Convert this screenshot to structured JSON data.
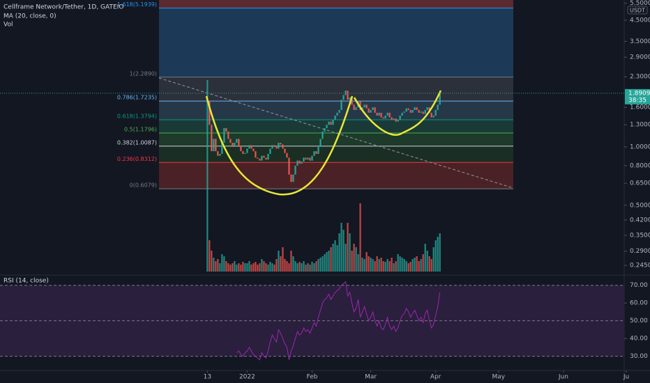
{
  "header": {
    "symbol": "Cellframe Network/Tether, 1D, GATEIO",
    "ma": "MA (20, close, 0)",
    "vol": "Vol",
    "rsi": "RSI (14, close)",
    "currency": "USDT",
    "countdown": "38:35"
  },
  "chart_data": [
    {
      "type": "candlestick",
      "log_scale": true,
      "up_color": "#26a69a",
      "down_color": "#ef5350",
      "xlim": [
        -99,
        199
      ],
      "xticks": [
        {
          "value": 0,
          "label": "13"
        },
        {
          "value": 19,
          "label": "2022"
        },
        {
          "value": 50,
          "label": "Feb"
        },
        {
          "value": 78,
          "label": "Mar"
        },
        {
          "value": 109,
          "label": "Apr"
        },
        {
          "value": 139,
          "label": "May"
        },
        {
          "value": 170,
          "label": "Jun"
        },
        {
          "value": 200,
          "label": "Ju"
        }
      ],
      "ylim": [
        0.222,
        5.72
      ],
      "yticks": [
        {
          "value": 5.5,
          "label": "5.5000"
        },
        {
          "value": 4.5,
          "label": "4.5000"
        },
        {
          "value": 3.5,
          "label": "3.5000"
        },
        {
          "value": 2.9,
          "label": "2.9000"
        },
        {
          "value": 2.3,
          "label": "2.3000"
        },
        {
          "value": 1.6,
          "label": "1.6000"
        },
        {
          "value": 1.3,
          "label": "1.3000"
        },
        {
          "value": 1,
          "label": "1.0000"
        },
        {
          "value": 0.8,
          "label": "0.8000"
        },
        {
          "value": 0.65,
          "label": "0.6500"
        },
        {
          "value": 0.5,
          "label": "0.5000"
        },
        {
          "value": 0.42,
          "label": "0.4200"
        },
        {
          "value": 0.35,
          "label": "0.3500"
        },
        {
          "value": 0.29,
          "label": "0.2900"
        },
        {
          "value": 0.245,
          "label": "0.2450"
        }
      ],
      "last_price": 1.8909,
      "top_fill": "#5a2a30",
      "fib_levels": [
        {
          "value": 5.1939,
          "label": "1.618(5.1939)",
          "color": "#2196f3",
          "fill": "#1c3a57"
        },
        {
          "value": 2.289,
          "label": "1(2.2890)",
          "color": "#787b86",
          "fill": "#2c303a"
        },
        {
          "value": 1.7235,
          "label": "0.786(1.7235)",
          "color": "#64b5f6",
          "fill": "#263848"
        },
        {
          "value": 1.3794,
          "label": "0.618(1.3794)",
          "color": "#089981",
          "fill": "#1a3a38"
        },
        {
          "value": 1.1796,
          "label": "0.5(1.1796)",
          "color": "#4caf50",
          "fill": "#1d3a2a"
        },
        {
          "value": 1.0087,
          "label": "0.382(1.0087)",
          "color": "#d1d4dc",
          "fill": "#1b2e24"
        },
        {
          "value": 0.8312,
          "label": "0.236(0.8312)",
          "color": "#f23645",
          "fill": "#4a2226"
        },
        {
          "value": 0.6079,
          "label": "0(0.6079)",
          "color": "#787b86",
          "fill": "none"
        }
      ],
      "values": [
        1.72,
        1.3,
        0.95,
        1.1,
        0.95,
        0.9,
        0.92,
        1.05,
        1.25,
        1.2,
        1.1,
        1.05,
        1.0,
        1.05,
        1.1,
        1.0,
        0.95,
        0.92,
        0.93,
        0.98,
        1.02,
        0.98,
        0.95,
        0.88,
        0.87,
        0.85,
        0.9,
        0.88,
        0.86,
        0.92,
        0.98,
        1.02,
        1.0,
        0.98,
        1.05,
        1.03,
        0.98,
        0.93,
        0.88,
        0.72,
        0.66,
        0.72,
        0.8,
        0.85,
        0.82,
        0.84,
        0.88,
        0.86,
        0.88,
        0.85,
        0.9,
        0.95,
        0.92,
        1.0,
        1.1,
        1.2,
        1.25,
        1.3,
        1.35,
        1.3,
        1.38,
        1.45,
        1.5,
        1.55,
        1.75,
        1.85,
        1.95,
        1.75,
        1.8,
        1.65,
        1.55,
        1.6,
        1.72,
        1.55,
        1.6,
        1.65,
        1.58,
        1.5,
        1.55,
        1.6,
        1.5,
        1.45,
        1.5,
        1.42,
        1.4,
        1.45,
        1.5,
        1.42,
        1.38,
        1.4,
        1.35,
        1.38,
        1.45,
        1.5,
        1.52,
        1.58,
        1.55,
        1.5,
        1.55,
        1.6,
        1.55,
        1.5,
        1.52,
        1.48,
        1.55,
        1.6,
        1.5,
        1.42,
        1.45,
        1.55,
        1.65,
        1.8909
      ]
    },
    {
      "type": "bar",
      "values": [
        275,
        45,
        30,
        20,
        15,
        18,
        12,
        25,
        22,
        15,
        12,
        10,
        12,
        15,
        10,
        12,
        10,
        14,
        12,
        12,
        15,
        10,
        12,
        14,
        10,
        12,
        18,
        15,
        12,
        10,
        14,
        12,
        10,
        18,
        30,
        22,
        35,
        18,
        15,
        12,
        30,
        22,
        15,
        12,
        14,
        12,
        15,
        10,
        12,
        10,
        14,
        12,
        15,
        18,
        20,
        22,
        25,
        28,
        30,
        35,
        40,
        45,
        38,
        55,
        70,
        60,
        40,
        70,
        55,
        30,
        40,
        35,
        25,
        98,
        20,
        18,
        28,
        22,
        20,
        18,
        15,
        22,
        18,
        20,
        15,
        14,
        18,
        15,
        20,
        12,
        15,
        25,
        22,
        20,
        18,
        15,
        12,
        14,
        18,
        20,
        22,
        15,
        18,
        25,
        40,
        30,
        22,
        18,
        35,
        45,
        50,
        55
      ]
    },
    {
      "type": "line",
      "color": "#9c27b0",
      "band_color": "#2a1f3d",
      "ylim": [
        22,
        75
      ],
      "yticks": [
        {
          "value": 70,
          "label": "70.00"
        },
        {
          "value": 60,
          "label": "60.00"
        },
        {
          "value": 50,
          "label": "50.00"
        },
        {
          "value": 40,
          "label": "40.00"
        },
        {
          "value": 30,
          "label": "30.00"
        }
      ],
      "values": [
        null,
        null,
        null,
        null,
        null,
        null,
        null,
        null,
        null,
        null,
        null,
        null,
        null,
        null,
        32,
        33,
        31,
        30,
        32,
        33,
        35,
        33,
        31,
        30,
        29,
        28,
        32,
        30,
        29,
        33,
        38,
        42,
        40,
        38,
        45,
        43,
        40,
        37,
        35,
        28,
        33,
        36,
        40,
        44,
        42,
        43,
        46,
        44,
        45,
        43,
        46,
        49,
        47,
        52,
        56,
        60,
        62,
        63,
        65,
        62,
        64,
        66,
        67,
        68,
        70,
        71,
        72,
        64,
        66,
        60,
        55,
        57,
        62,
        52,
        55,
        58,
        54,
        50,
        52,
        55,
        50,
        47,
        50,
        46,
        45,
        48,
        52,
        47,
        45,
        47,
        44,
        46,
        50,
        53,
        54,
        57,
        55,
        52,
        54,
        56,
        53,
        50,
        52,
        49,
        54,
        56,
        50,
        46,
        48,
        53,
        58,
        66
      ]
    }
  ]
}
